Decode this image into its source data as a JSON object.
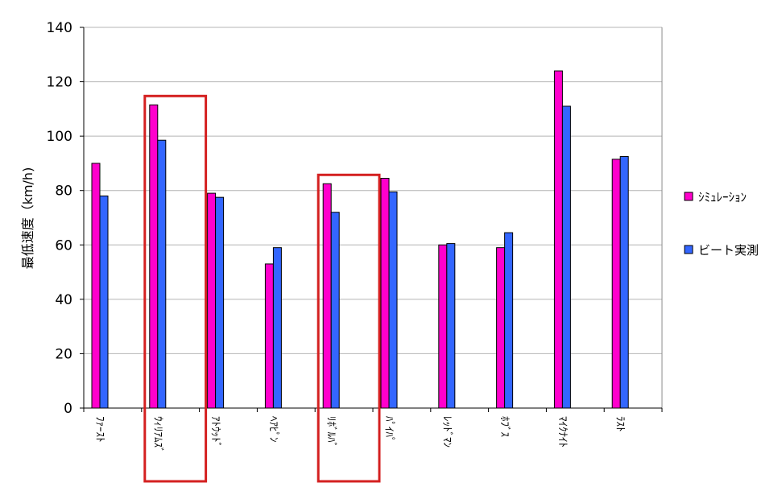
{
  "chart_data": {
    "type": "bar",
    "ylabel": "最低速度（km/h)",
    "ylim": [
      0,
      140
    ],
    "yticks": [
      0,
      20,
      40,
      60,
      80,
      100,
      120,
      140
    ],
    "grid": true,
    "legend_position": "right",
    "categories": [
      "ﾌｧｰｽﾄ",
      "ｳｨﾘｱﾑｽﾞ",
      "ｱﾄｳｯﾄﾞ",
      "ﾍｱﾋﾟﾝ",
      "ﾘﾎﾞﾙﾊﾞ",
      "ﾊﾟｲﾊﾟ",
      "ﾚｯﾄﾞﾏﾝ",
      "ﾎﾌﾞｽ",
      "ﾏｲｸﾅｲﾄ",
      "ﾗｽﾄ"
    ],
    "series": [
      {
        "name": "ｼﾐｭﾚｰｼｮﾝ",
        "color": "#ff00cc",
        "values": [
          90,
          111.5,
          79,
          53,
          82.5,
          84.5,
          60,
          59,
          124,
          91.5
        ]
      },
      {
        "name": "ビート実測",
        "color": "#3366ff",
        "values": [
          78,
          98.5,
          77.5,
          59,
          72,
          79.5,
          60.5,
          64.5,
          111,
          92.5
        ]
      }
    ],
    "highlighted_categories": [
      "ｳｨﾘｱﾑｽﾞ",
      "ﾘﾎﾞﾙﾊﾞ"
    ],
    "highlight_color": "#d42020"
  }
}
